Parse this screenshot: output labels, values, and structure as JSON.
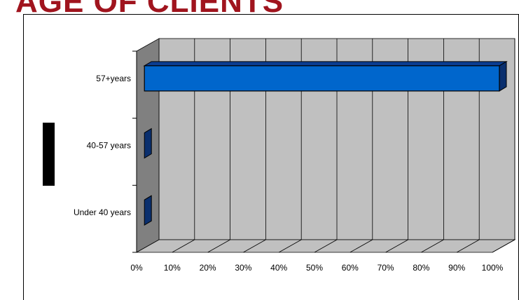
{
  "slide": {
    "title": "AGE OF CLIENTS"
  },
  "chart_data": {
    "type": "bar",
    "orientation": "horizontal",
    "style": "3d",
    "categories": [
      "57+years",
      "40-57 years",
      "Under 40 years"
    ],
    "values": [
      100,
      0,
      0
    ],
    "xlim": [
      0,
      100
    ],
    "ticks": [
      "0%",
      "10%",
      "20%",
      "30%",
      "40%",
      "50%",
      "60%",
      "70%",
      "80%",
      "90%",
      "100%"
    ],
    "grid": true,
    "legend": "none",
    "title": "",
    "xlabel": "",
    "ylabel": "",
    "colors": {
      "bar_front": "#0066cc",
      "bar_top": "#0b3d91",
      "bar_side": "#0a2f6e",
      "back_wall": "#c0c0c0",
      "side_wall": "#808080",
      "floor": "#c0c0c0"
    }
  }
}
